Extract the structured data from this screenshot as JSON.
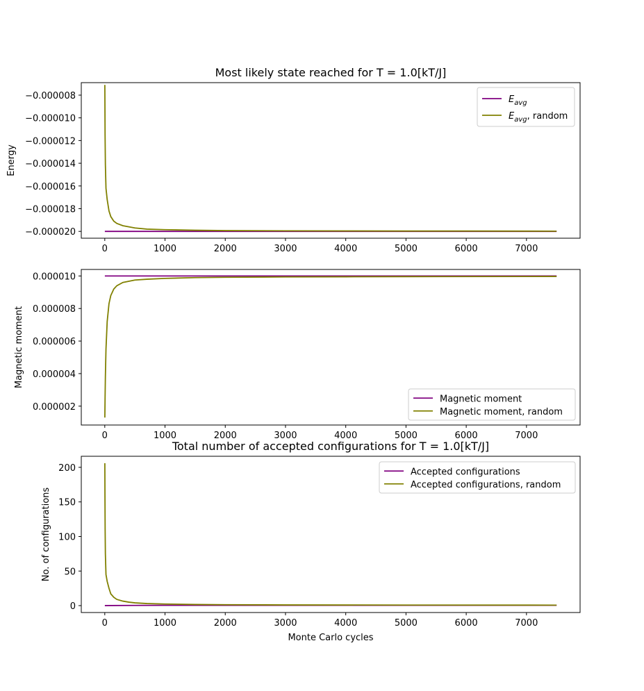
{
  "chart_data": [
    {
      "type": "line",
      "title": "Most likely state reached for T = 1.0[kT/J]",
      "xlabel": "",
      "ylabel": "Energy",
      "xlim": [
        -390,
        7890
      ],
      "ylim": [
        -2.06e-05,
        -6.9e-06
      ],
      "xticks": [
        0,
        1000,
        2000,
        3000,
        4000,
        5000,
        6000,
        7000
      ],
      "xtick_labels": [
        "0",
        "1000",
        "2000",
        "3000",
        "4000",
        "5000",
        "6000",
        "7000"
      ],
      "yticks": [
        -8e-06,
        -1e-05,
        -1.2e-05,
        -1.4e-05,
        -1.6e-05,
        -1.8e-05,
        -2e-05
      ],
      "ytick_labels": [
        "−0.000008",
        "−0.000010",
        "−0.000012",
        "−0.000014",
        "−0.000016",
        "−0.000018",
        "−0.000020"
      ],
      "legend_position": "upper right",
      "series": [
        {
          "name_main": "E",
          "name_sub": "avg",
          "name_suffix": "",
          "color": "#800080",
          "x": [
            1,
            100,
            500,
            1000,
            2000,
            3000,
            5000,
            7500
          ],
          "y": [
            -2e-05,
            -2e-05,
            -2e-05,
            -2e-05,
            -2e-05,
            -2e-05,
            -2e-05,
            -2e-05
          ]
        },
        {
          "name_main": "E",
          "name_sub": "avg",
          "name_suffix": ", random",
          "color": "#808000",
          "x": [
            1,
            5,
            10,
            20,
            40,
            70,
            100,
            150,
            200,
            300,
            400,
            500,
            700,
            1000,
            1500,
            2000,
            3000,
            4000,
            5000,
            6000,
            7500
          ],
          "y": [
            -7.1e-06,
            -1.15e-05,
            -1.41e-05,
            -1.62e-05,
            -1.72e-05,
            -1.82e-05,
            -1.87e-05,
            -1.91e-05,
            -1.93e-05,
            -1.95e-05,
            -1.96e-05,
            -1.97e-05,
            -1.98e-05,
            -1.985e-05,
            -1.99e-05,
            -1.993e-05,
            -1.995e-05,
            -1.996e-05,
            -1.997e-05,
            -1.997e-05,
            -1.998e-05
          ]
        }
      ]
    },
    {
      "type": "line",
      "title": "",
      "xlabel": "",
      "ylabel": "Magnetic moment",
      "xlim": [
        -390,
        7890
      ],
      "ylim": [
        8.4e-07,
        1.04e-05
      ],
      "xticks": [
        0,
        1000,
        2000,
        3000,
        4000,
        5000,
        6000,
        7000
      ],
      "xtick_labels": [
        "0",
        "1000",
        "2000",
        "3000",
        "4000",
        "5000",
        "6000",
        "7000"
      ],
      "yticks": [
        2e-06,
        4e-06,
        6e-06,
        8e-06,
        1e-05
      ],
      "ytick_labels": [
        "0.000002",
        "0.000004",
        "0.000006",
        "0.000008",
        "0.000010"
      ],
      "legend_position": "lower right",
      "series": [
        {
          "name_main": "Magnetic moment",
          "name_sub": "",
          "name_suffix": "",
          "color": "#800080",
          "x": [
            1,
            100,
            1000,
            3000,
            5000,
            7500
          ],
          "y": [
            1e-05,
            1e-05,
            1e-05,
            1e-05,
            1e-05,
            1e-05
          ]
        },
        {
          "name_main": "Magnetic moment, random",
          "name_sub": "",
          "name_suffix": "",
          "color": "#808000",
          "x": [
            1,
            5,
            10,
            20,
            40,
            70,
            100,
            150,
            200,
            300,
            500,
            700,
            1000,
            1500,
            2000,
            3000,
            4000,
            5000,
            7500
          ],
          "y": [
            1.3e-06,
            2.5e-06,
            3.8e-06,
            5.5e-06,
            7.2e-06,
            8.3e-06,
            8.8e-06,
            9.2e-06,
            9.4e-06,
            9.6e-06,
            9.75e-06,
            9.8e-06,
            9.85e-06,
            9.9e-06,
            9.92e-06,
            9.94e-06,
            9.95e-06,
            9.96e-06,
            9.97e-06
          ]
        }
      ]
    },
    {
      "type": "line",
      "title": "Total number of accepted configurations for T = 1.0[kT/J]",
      "xlabel": "Monte Carlo cycles",
      "ylabel": "No. of configurations",
      "xlim": [
        -390,
        7890
      ],
      "ylim": [
        -10,
        216
      ],
      "xticks": [
        0,
        1000,
        2000,
        3000,
        4000,
        5000,
        6000,
        7000
      ],
      "xtick_labels": [
        "0",
        "1000",
        "2000",
        "3000",
        "4000",
        "5000",
        "6000",
        "7000"
      ],
      "yticks": [
        0,
        50,
        100,
        150,
        200
      ],
      "ytick_labels": [
        "0",
        "50",
        "100",
        "150",
        "200"
      ],
      "legend_position": "upper right",
      "series": [
        {
          "name_main": "Accepted configurations",
          "name_sub": "",
          "name_suffix": "",
          "color": "#800080",
          "x": [
            1,
            100,
            500,
            1000,
            2000,
            3000,
            5000,
            7500
          ],
          "y": [
            0,
            0.1,
            0.3,
            0.4,
            0.5,
            0.5,
            0.5,
            0.5
          ]
        },
        {
          "name_main": "Accepted configurations, random",
          "name_sub": "",
          "name_suffix": "",
          "color": "#808000",
          "x": [
            1,
            3,
            6,
            10,
            20,
            40,
            70,
            100,
            150,
            200,
            300,
            400,
            500,
            700,
            1000,
            1500,
            2000,
            3000,
            5000,
            7500
          ],
          "y": [
            206,
            160,
            110,
            75,
            45,
            35,
            25,
            17,
            12,
            9,
            6.5,
            5,
            4,
            3,
            2.3,
            1.6,
            1.3,
            1,
            0.8,
            0.7
          ]
        }
      ]
    }
  ]
}
